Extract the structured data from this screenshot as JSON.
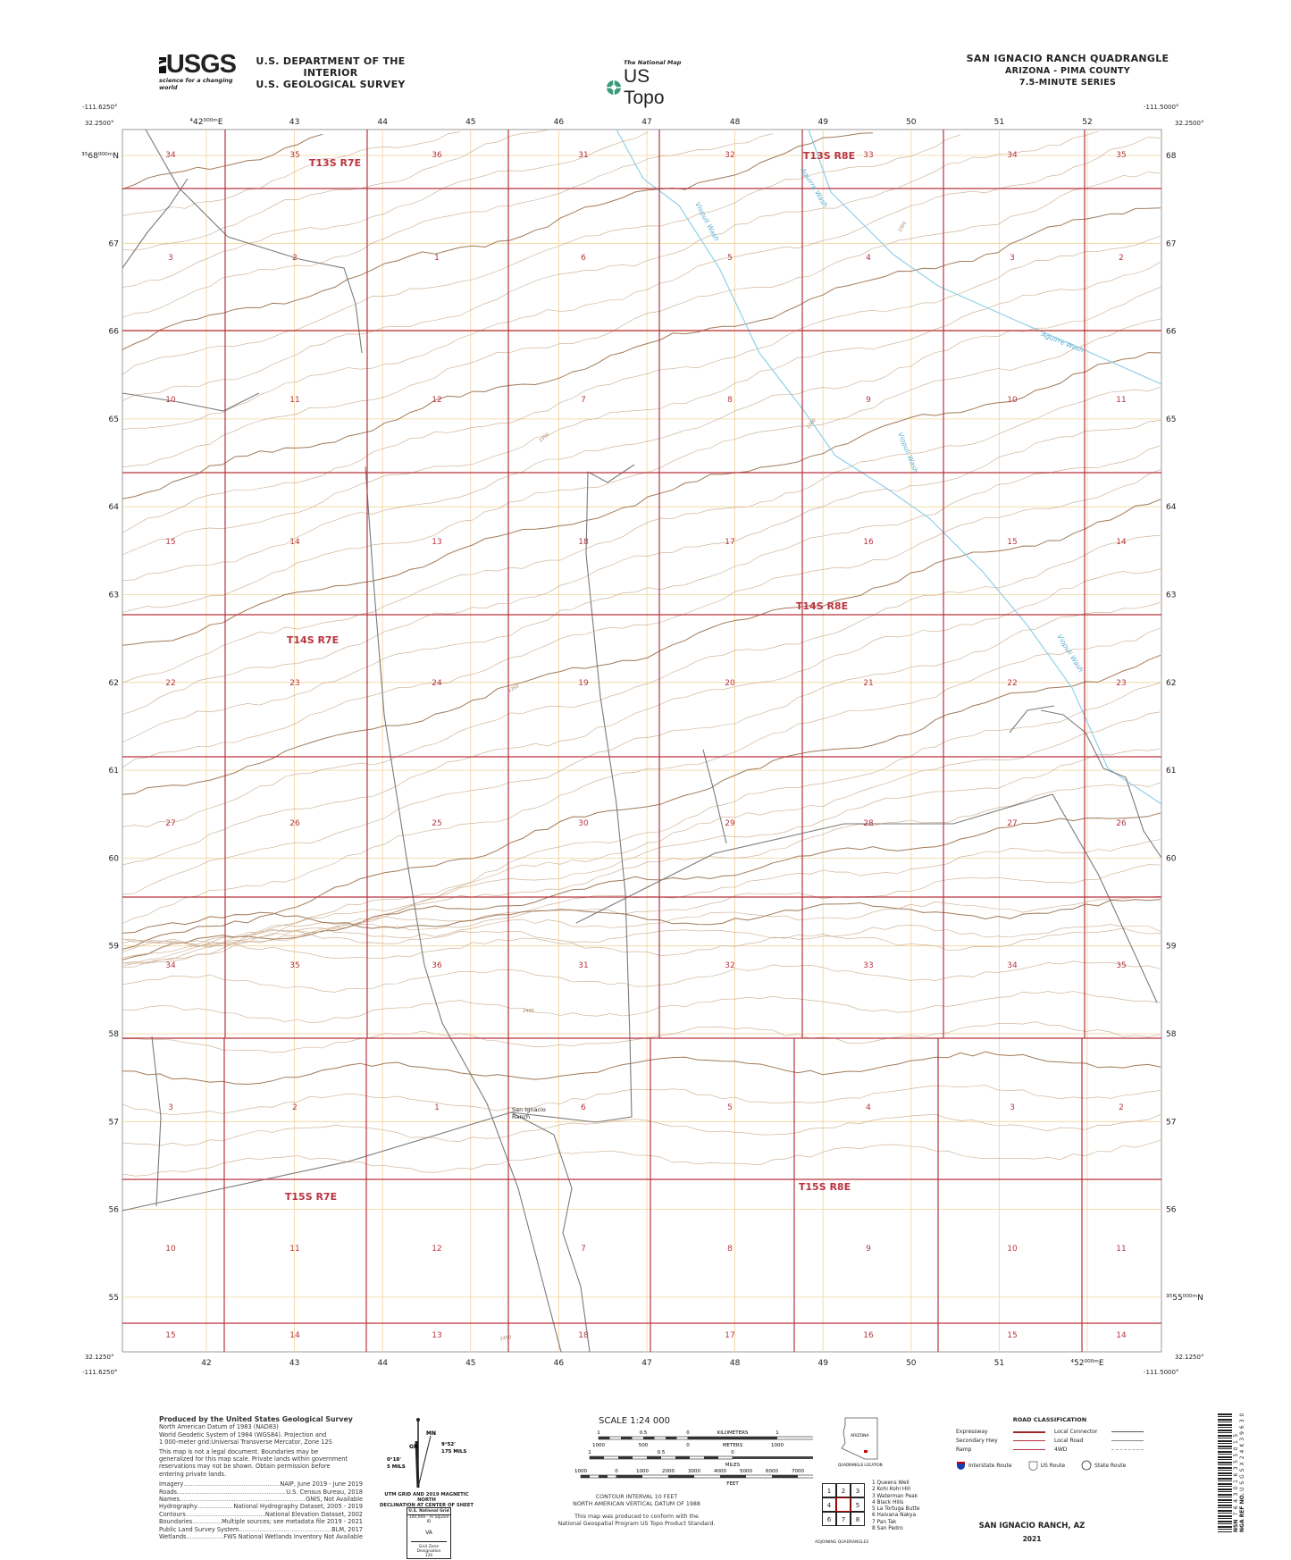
{
  "header": {
    "agency_line1": "U.S. DEPARTMENT OF THE INTERIOR",
    "agency_line2": "U.S. GEOLOGICAL SURVEY",
    "usgs_logo_text": "USGS",
    "usgs_tagline": "science for a changing world",
    "national_map_label": "The National Map",
    "us_topo_label": "US Topo",
    "quad_title": "SAN IGNACIO RANCH QUADRANGLE",
    "quad_state_county": "ARIZONA - PIMA COUNTY",
    "quad_series": "7.5-MINUTE SERIES"
  },
  "map": {
    "corners": {
      "top_left_lon": "-111.6250°",
      "top_left_lat": "32.2500°",
      "top_right_lon": "-111.5000°",
      "top_right_lat": "32.2500°",
      "bottom_left_lon": "-111.6250°",
      "bottom_left_lat": "32.1250°",
      "bottom_right_lon": "-111.5000°",
      "bottom_right_lat": "32.1250°"
    },
    "easting_top": [
      "⁴42⁰⁰⁰ᵐE",
      "43",
      "44",
      "45",
      "46",
      "47",
      "48",
      "49",
      "50",
      "51",
      "52"
    ],
    "easting_bottom": [
      "42",
      "43",
      "44",
      "45",
      "46",
      "47",
      "48",
      "49",
      "50",
      "51",
      "⁴52⁰⁰⁰ᵐE"
    ],
    "northing_left": [
      "³⁵68⁰⁰⁰ᵐN",
      "67",
      "66",
      "65",
      "64",
      "63",
      "62",
      "61",
      "60",
      "59",
      "58",
      "57",
      "56",
      "55"
    ],
    "northing_right": [
      "68",
      "67",
      "66",
      "65",
      "64",
      "63",
      "62",
      "61",
      "60",
      "59",
      "58",
      "57",
      "56",
      "³⁵55⁰⁰⁰ᵐN"
    ],
    "section_rows": [
      [
        "34",
        "35",
        "36",
        "31",
        "32",
        "33",
        "34",
        "35"
      ],
      [
        "3",
        "2",
        "1",
        "6",
        "5",
        "4",
        "3",
        "2"
      ],
      [
        "10",
        "11",
        "12",
        "7",
        "8",
        "9",
        "10",
        "11"
      ],
      [
        "15",
        "14",
        "13",
        "18",
        "17",
        "16",
        "15",
        "14"
      ],
      [
        "22",
        "23",
        "24",
        "19",
        "20",
        "21",
        "22",
        "23"
      ],
      [
        "27",
        "26",
        "25",
        "30",
        "29",
        "28",
        "27",
        "26"
      ],
      [
        "34",
        "35",
        "36",
        "31",
        "32",
        "33",
        "34",
        "35"
      ],
      [
        "3",
        "2",
        "1",
        "6",
        "5",
        "4",
        "3",
        "2"
      ],
      [
        "10",
        "11",
        "12",
        "7",
        "8",
        "9",
        "10",
        "11"
      ],
      [
        "15",
        "14",
        "13",
        "18",
        "17",
        "16",
        "15",
        "14"
      ]
    ],
    "townships": [
      "T13S R7E",
      "T13S R8E",
      "T14S R7E",
      "T14S R8E",
      "T15S R7E",
      "T15S R8E"
    ],
    "features": {
      "aguirre_wash": "Aguirre Wash",
      "viopuli_wash": "Viopuli Wash",
      "san_ignacio_ranch_line1": "San Ignacio",
      "san_ignacio_ranch_line2": "Ranch"
    },
    "contour_labels": [
      "2300",
      "2350",
      "2400",
      "2450"
    ],
    "colors": {
      "section_line": "#b8333f",
      "contour": "#c9a98a",
      "index_contour": "#a07a5a",
      "grid": "#f0d49a",
      "water": "#8fd0e8",
      "road": "#7a7a7a",
      "township_text": "#b8333f"
    }
  },
  "footer": {
    "credits_title": "Produced by the United States Geological Survey",
    "credits_lines": [
      "North American Datum of 1983 (NAD83)",
      "World Geodetic System of 1984 (WGS84).  Projection and",
      "1 000-meter grid:Universal Transverse Mercator, Zone 12S"
    ],
    "disclaimer_lines": [
      "This map is not a legal document. Boundaries may be",
      "generalized for this map scale. Private lands within government",
      "reservations may not be shown. Obtain permission before",
      "entering private lands."
    ],
    "sources": [
      {
        "label": "Imagery",
        "value": "NAIP, June 2019 - June 2019"
      },
      {
        "label": "Roads",
        "value": "U.S. Census Bureau, 2018"
      },
      {
        "label": "Names",
        "value": "GNIS, Not Available"
      },
      {
        "label": "Hydrography",
        "value": "National Hydrography Dataset, 2005 - 2019"
      },
      {
        "label": "Contours",
        "value": "National Elevation Dataset, 2002"
      },
      {
        "label": "Boundaries",
        "value": "Multiple sources; see metadata file 2019 - 2021"
      },
      {
        "label": "Public Land Survey System",
        "value": "BLM, 2017"
      },
      {
        "label": "Wetlands",
        "value": "FWS National Wetlands Inventory Not Available"
      }
    ],
    "declination": {
      "gn_label": "GN",
      "mn_label": "MN",
      "gn_angle": "0°18'",
      "gn_mils": "5 MILS",
      "mn_angle": "9°52'",
      "mn_mils": "175 MILS",
      "caption_line1": "UTM GRID AND 2019 MAGNETIC NORTH",
      "caption_line2": "DECLINATION AT CENTER OF SHEET"
    },
    "usng": {
      "title": "U.S. National Grid",
      "subtitle": "100,000 - m Square ID",
      "square_id": "VA",
      "zone_label": "Grid Zone Designation",
      "zone": "12S"
    },
    "scale": {
      "title": "SCALE 1:24 000",
      "km_ticks": [
        "1",
        "0.5",
        "0",
        "1",
        "2"
      ],
      "km_label": "KILOMETERS",
      "m_ticks": [
        "1000",
        "500",
        "0",
        "1000",
        "2000"
      ],
      "m_label": "METERS",
      "mi_ticks": [
        "1",
        "0.5",
        "0",
        "1"
      ],
      "mi_label": "MILES",
      "ft_ticks": [
        "1000",
        "0",
        "1000",
        "2000",
        "3000",
        "4000",
        "5000",
        "6000",
        "7000",
        "8000",
        "9000",
        "10000"
      ],
      "ft_label": "FEET"
    },
    "contour_interval": "CONTOUR INTERVAL 10 FEET",
    "vertical_datum": "NORTH AMERICAN VERTICAL DATUM OF 1988",
    "standard_line1": "This map was produced to conform with the",
    "standard_line2": "National Geospatial Program US Topo Product Standard.",
    "location": {
      "state": "ARIZONA",
      "caption": "QUADRANGLE LOCATION"
    },
    "road_classification": {
      "title": "ROAD CLASSIFICATION",
      "items": [
        {
          "label": "Expressway",
          "color": "#9b2a2a"
        },
        {
          "label": "Local Connector",
          "color": "#555555"
        },
        {
          "label": "Secondary Hwy",
          "color": "#b8333f"
        },
        {
          "label": "Local Road",
          "color": "#888888"
        },
        {
          "label": "Ramp",
          "color": "#b8333f"
        },
        {
          "label": "4WD",
          "color": "#aaaaaa"
        }
      ],
      "interstate": "Interstate Route",
      "us_route": "US Route",
      "state_route": "State Route"
    },
    "adjoining": {
      "cells": [
        "1",
        "2",
        "3",
        "4",
        "",
        "5",
        "6",
        "7",
        "8"
      ],
      "names": [
        "1 Queens Well",
        "2 Kohi Kohl Hill",
        "3 Waterman Peak",
        "4 Black Hills",
        "5 La Tortuga Butte",
        "6 Haivana Nakya",
        "7 Pan Tak",
        "8 San Pedro"
      ],
      "caption": "ADJOINING QUADRANGLES"
    },
    "sheet_title": "SAN IGNACIO RANCH,  AZ",
    "year": "2021",
    "barcode": {
      "nsn_label": "NSN",
      "nsn": "7643016355015",
      "nga_label": "NGA REF NO.",
      "nga": "USGSX24K39630"
    }
  }
}
